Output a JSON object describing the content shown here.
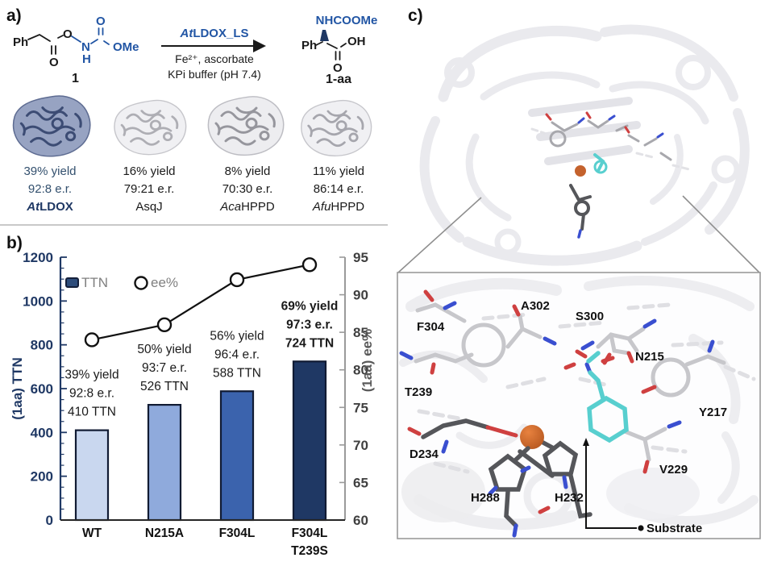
{
  "figure": {
    "panel_a_label": "a)",
    "panel_b_label": "b)",
    "panel_c_label": "c)"
  },
  "scheme": {
    "substrate": {
      "ph": "Ph",
      "o_carbonyl": "O",
      "o_ester": "O",
      "n": "N",
      "h": "H",
      "o_carbamate": "O",
      "ome": "OMe",
      "label": "1"
    },
    "arrow": {
      "enzyme_prefix": "At",
      "enzyme_rest": "LDOX_LS",
      "condition1": "Fe²⁺, ascorbate",
      "condition2": "KPi buffer (pH 7.4)"
    },
    "product": {
      "nhcoome": "NHCOOMe",
      "ph": "Ph",
      "oh": "OH",
      "o": "O",
      "label": "1-aa"
    }
  },
  "enzymes": [
    {
      "yield": "39% yield",
      "er": "92:8 e.r.",
      "name_italic": "At",
      "name_rest": "LDOX",
      "highlight": true
    },
    {
      "yield": "16% yield",
      "er": "79:21 e.r.",
      "name_italic": "",
      "name_rest": "AsqJ",
      "highlight": false
    },
    {
      "yield": "8% yield",
      "er": "70:30 e.r.",
      "name_italic": "Aca",
      "name_rest": "HPPD",
      "highlight": false
    },
    {
      "yield": "11% yield",
      "er": "86:14 e.r.",
      "name_italic": "Afu",
      "name_rest": "HPPD",
      "highlight": false
    }
  ],
  "chart_data": {
    "type": "bar",
    "title": "",
    "categories": [
      "WT",
      "N215A",
      "F304L",
      "F304L\nT239S"
    ],
    "series": [
      {
        "name": "TTN",
        "axis": "left",
        "type": "bar",
        "values": [
          410,
          526,
          588,
          724
        ]
      },
      {
        "name": "ee%",
        "axis": "right",
        "type": "line",
        "values": [
          84,
          86,
          92,
          94
        ]
      }
    ],
    "bar_colors": [
      "#c9d7ef",
      "#8faadc",
      "#3b63ad",
      "#1f3864"
    ],
    "bar_border_color": "#111b33",
    "annotations": [
      {
        "lines": [
          "39% yield",
          "92:8 e.r.",
          "410 TTN"
        ],
        "bold": false
      },
      {
        "lines": [
          "50% yield",
          "93:7 e.r.",
          "526 TTN"
        ],
        "bold": false
      },
      {
        "lines": [
          "56% yield",
          "96:4 e.r.",
          "588 TTN"
        ],
        "bold": false
      },
      {
        "lines": [
          "69% yield",
          "97:3 e.r.",
          "724 TTN"
        ],
        "bold": true
      }
    ],
    "ylabel_left": "(1aa) TTN",
    "ylabel_right": "(1aa) ee%",
    "ylim_left": [
      0,
      1200
    ],
    "ylim_right": [
      60,
      95
    ],
    "ytick_left_step": 200,
    "ytick_left_minor_step": 50,
    "ytick_right_step": 5,
    "legend": [
      "TTN",
      "ee%"
    ],
    "legend_position": "top-left-inside",
    "grid": false,
    "axis_color_left": "#1f3864",
    "axis_color_right": "#9a9a9a",
    "tick_label_color_right": "#404040",
    "legend_text_color": "#7f7f7f"
  },
  "panel_c": {
    "residues": [
      "F304",
      "A302",
      "S300",
      "N215",
      "T239",
      "Y217",
      "D234",
      "H288",
      "H232",
      "V229"
    ],
    "substrate_label": "Substrate",
    "fe_color": "#c4622d",
    "substrate_color": "#58cfcf",
    "scheme_blue": "#2155a4",
    "navy": "#1f3864"
  }
}
